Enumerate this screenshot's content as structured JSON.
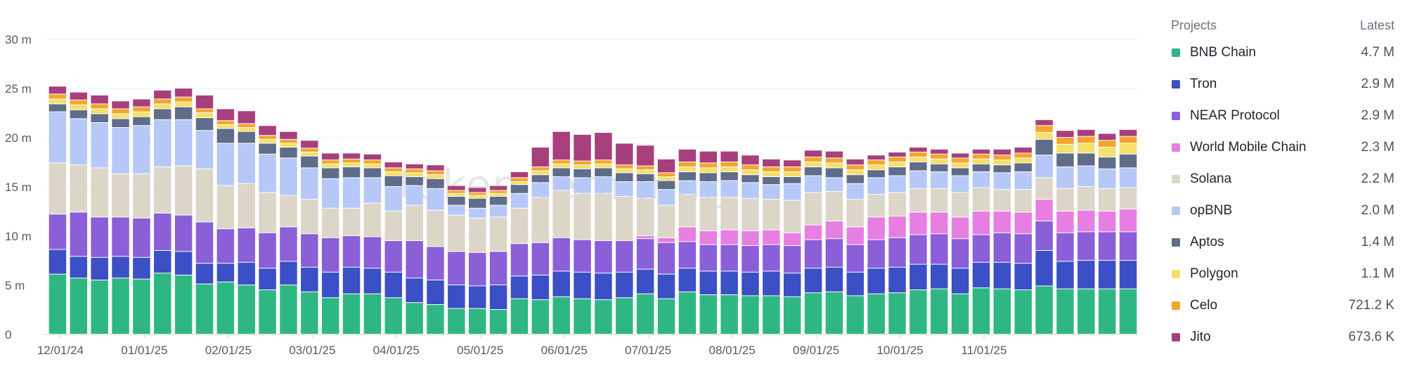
{
  "chart_data": {
    "type": "bar",
    "stacked": true,
    "title": "",
    "xlabel": "",
    "ylabel": "",
    "ylim": [
      0,
      30000000
    ],
    "y_ticks": [
      "0",
      "5 m",
      "10 m",
      "15 m",
      "20 m",
      "25 m",
      "30 m"
    ],
    "y_tick_values": [
      0,
      5000000,
      10000000,
      15000000,
      20000000,
      25000000,
      30000000
    ],
    "x_tick_labels": [
      "12/01/24",
      "01/01/25",
      "02/01/25",
      "03/01/25",
      "04/01/25",
      "05/01/25",
      "06/01/25",
      "07/01/25",
      "08/01/25",
      "09/01/25",
      "10/01/25",
      "11/01/25"
    ],
    "x_tick_positions": [
      0,
      4,
      8,
      12,
      16,
      20,
      24,
      28,
      32,
      36,
      40,
      44
    ],
    "bar_count": 52,
    "watermark": "token terminal_",
    "series": [
      {
        "name": "BNB Chain",
        "color": "#2fb783",
        "latest": "4.7 M",
        "values": [
          6.1,
          5.7,
          5.5,
          5.7,
          5.6,
          6.2,
          6.0,
          5.1,
          5.3,
          5.0,
          4.5,
          5.0,
          4.3,
          3.7,
          4.1,
          4.1,
          3.7,
          3.2,
          3.0,
          2.6,
          2.6,
          2.5,
          3.6,
          3.5,
          3.8,
          3.6,
          3.5,
          3.7,
          4.1,
          3.6,
          4.3,
          4.0,
          4.0,
          3.9,
          3.9,
          3.8,
          4.2,
          4.3,
          3.9,
          4.1,
          4.2,
          4.5,
          4.6,
          4.1,
          4.7,
          4.6,
          4.5,
          4.9,
          4.6,
          4.6,
          4.6,
          4.6
        ]
      },
      {
        "name": "Tron",
        "color": "#3b4fc6",
        "latest": "2.9 M",
        "values": [
          2.5,
          2.2,
          2.3,
          2.2,
          2.2,
          2.3,
          2.4,
          2.1,
          1.9,
          2.3,
          2.2,
          2.4,
          2.5,
          2.6,
          2.7,
          2.6,
          2.6,
          2.5,
          2.5,
          2.4,
          2.3,
          2.5,
          2.3,
          2.5,
          2.6,
          2.7,
          2.7,
          2.6,
          2.5,
          2.5,
          2.4,
          2.4,
          2.4,
          2.4,
          2.5,
          2.4,
          2.5,
          2.5,
          2.4,
          2.6,
          2.6,
          2.6,
          2.5,
          2.6,
          2.6,
          2.7,
          2.7,
          3.6,
          2.8,
          2.9,
          2.9,
          2.9
        ]
      },
      {
        "name": "NEAR Protocol",
        "color": "#8a5fd8",
        "latest": "2.9 M",
        "values": [
          3.6,
          4.5,
          4.1,
          4.0,
          4.0,
          3.8,
          3.7,
          4.2,
          3.5,
          3.5,
          3.6,
          3.5,
          3.4,
          3.5,
          3.2,
          3.2,
          3.2,
          3.8,
          3.4,
          3.4,
          3.4,
          3.4,
          3.3,
          3.3,
          3.4,
          3.3,
          3.3,
          3.2,
          3.1,
          3.2,
          2.7,
          2.7,
          2.7,
          2.7,
          2.7,
          2.8,
          2.9,
          2.9,
          2.8,
          2.9,
          3.0,
          3.0,
          3.1,
          3.0,
          2.8,
          3.0,
          3.0,
          3.0,
          2.9,
          2.9,
          2.9,
          2.9
        ]
      },
      {
        "name": "World Mobile Chain",
        "color": "#e77fe3",
        "latest": "2.3 M",
        "values": [
          0,
          0,
          0,
          0,
          0,
          0,
          0,
          0,
          0,
          0,
          0,
          0,
          0,
          0,
          0,
          0,
          0,
          0,
          0,
          0,
          0,
          0,
          0,
          0,
          0,
          0,
          0,
          0,
          0.3,
          0.5,
          1.5,
          1.4,
          1.5,
          1.5,
          1.5,
          1.3,
          1.5,
          1.8,
          1.8,
          2.3,
          2.2,
          2.3,
          2.2,
          2.2,
          2.4,
          2.2,
          2.2,
          2.2,
          2.2,
          2.2,
          2.1,
          2.3
        ]
      },
      {
        "name": "Solana",
        "color": "#dcd6c9",
        "latest": "2.2 M",
        "values": [
          5.2,
          4.8,
          5.0,
          4.4,
          4.5,
          4.7,
          5.0,
          5.4,
          4.4,
          4.5,
          4.1,
          3.2,
          3.5,
          3.0,
          2.8,
          3.4,
          3.0,
          3.6,
          3.7,
          3.7,
          3.5,
          3.5,
          3.6,
          4.6,
          4.8,
          4.7,
          4.8,
          4.5,
          3.8,
          3.3,
          3.3,
          3.4,
          3.3,
          3.3,
          3.1,
          3.3,
          3.3,
          3.0,
          2.8,
          2.3,
          2.4,
          2.4,
          2.4,
          2.5,
          2.4,
          2.2,
          2.3,
          2.2,
          2.3,
          2.4,
          2.3,
          2.2
        ]
      },
      {
        "name": "opBNB",
        "color": "#b6c8f7",
        "latest": "2.0 M",
        "values": [
          5.2,
          4.7,
          4.6,
          4.7,
          4.9,
          4.8,
          4.7,
          3.9,
          4.3,
          4.1,
          3.9,
          3.8,
          3.2,
          3.0,
          3.1,
          2.6,
          2.5,
          2.0,
          2.2,
          1.0,
          1.0,
          1.2,
          1.5,
          1.5,
          1.4,
          1.6,
          1.7,
          1.5,
          1.7,
          1.6,
          1.4,
          1.6,
          1.7,
          1.6,
          1.5,
          1.7,
          1.7,
          1.4,
          1.6,
          1.7,
          1.7,
          1.8,
          1.7,
          1.7,
          1.6,
          1.7,
          1.8,
          2.3,
          2.2,
          2.1,
          2.0,
          2.0
        ]
      },
      {
        "name": "Aptos",
        "color": "#5f6d8a",
        "latest": "1.4 M",
        "values": [
          0.8,
          0.9,
          0.9,
          0.9,
          0.9,
          1.1,
          1.3,
          1.3,
          1.5,
          1.2,
          1.1,
          1.1,
          1.2,
          1.1,
          1.1,
          1.0,
          1.1,
          0.9,
          1.0,
          0.9,
          1.0,
          0.9,
          0.9,
          0.8,
          0.9,
          0.9,
          0.9,
          0.9,
          0.8,
          0.9,
          0.9,
          0.9,
          0.9,
          0.8,
          0.8,
          0.7,
          0.9,
          1.0,
          0.9,
          0.8,
          0.9,
          0.9,
          0.8,
          0.8,
          0.8,
          0.8,
          0.9,
          1.6,
          1.4,
          1.3,
          1.2,
          1.4
        ]
      },
      {
        "name": "Polygon",
        "color": "#f4e06b",
        "latest": "1.1 M",
        "values": [
          0.5,
          0.5,
          0.5,
          0.5,
          0.5,
          0.5,
          0.5,
          0.5,
          0.4,
          0.4,
          0.4,
          0.4,
          0.4,
          0.4,
          0.4,
          0.4,
          0.4,
          0.4,
          0.4,
          0.3,
          0.3,
          0.3,
          0.3,
          0.4,
          0.4,
          0.4,
          0.4,
          0.4,
          0.4,
          0.4,
          0.5,
          0.5,
          0.5,
          0.5,
          0.5,
          0.5,
          0.5,
          0.5,
          0.5,
          0.5,
          0.5,
          0.5,
          0.5,
          0.5,
          0.5,
          0.5,
          0.5,
          0.7,
          0.9,
          1.0,
          1.0,
          1.1
        ]
      },
      {
        "name": "Celo",
        "color": "#f5a52d",
        "latest": "721.2 K",
        "values": [
          0.5,
          0.5,
          0.5,
          0.5,
          0.5,
          0.5,
          0.5,
          0.4,
          0.4,
          0.4,
          0.4,
          0.4,
          0.4,
          0.4,
          0.4,
          0.4,
          0.4,
          0.4,
          0.4,
          0.3,
          0.3,
          0.3,
          0.4,
          0.4,
          0.4,
          0.4,
          0.4,
          0.4,
          0.4,
          0.4,
          0.5,
          0.5,
          0.5,
          0.5,
          0.5,
          0.5,
          0.5,
          0.5,
          0.5,
          0.5,
          0.5,
          0.5,
          0.5,
          0.5,
          0.5,
          0.5,
          0.5,
          0.7,
          0.7,
          0.7,
          0.7,
          0.7
        ]
      },
      {
        "name": "Jito",
        "color": "#a83f7d",
        "latest": "673.6 K",
        "values": [
          0.8,
          0.8,
          0.9,
          0.8,
          0.8,
          0.9,
          0.9,
          1.4,
          1.2,
          1.3,
          1.0,
          0.8,
          0.8,
          0.7,
          0.6,
          0.6,
          0.6,
          0.5,
          0.6,
          0.5,
          0.5,
          0.5,
          0.6,
          2.0,
          2.9,
          2.7,
          2.8,
          2.2,
          2.1,
          1.4,
          1.3,
          1.2,
          1.1,
          1.0,
          0.8,
          0.7,
          0.7,
          0.7,
          0.6,
          0.5,
          0.5,
          0.5,
          0.5,
          0.5,
          0.5,
          0.6,
          0.6,
          0.6,
          0.7,
          0.7,
          0.7,
          0.7
        ]
      }
    ]
  },
  "legend": {
    "header_left": "Projects",
    "header_right": "Latest"
  }
}
